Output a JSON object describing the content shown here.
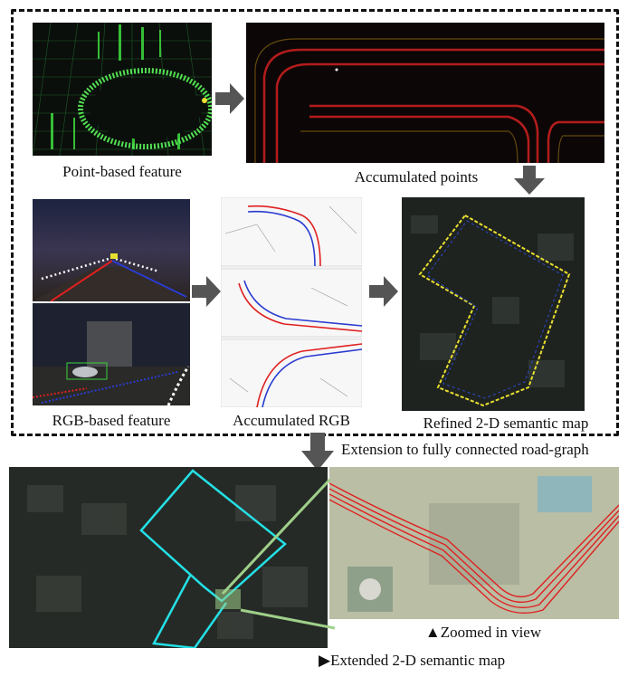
{
  "captions": {
    "point_feature": "Point-based feature",
    "accumulated_points": "Accumulated points",
    "rgb_feature": "RGB-based feature",
    "accumulated_rgb": "Accumulated RGB",
    "refined_map": "Refined 2-D semantic map",
    "extension": "Extension to fully connected road-graph",
    "zoomed": "▲Zoomed in view",
    "extended_map": "▶Extended 2-D semantic map"
  },
  "colors": {
    "point_green": "#3bd23b",
    "road_red": "#e02020",
    "map_yellow": "#e8e030",
    "map_cyan": "#23e0e6",
    "arrow_gray": "#555555",
    "zoom_link": "#9fd08a"
  }
}
